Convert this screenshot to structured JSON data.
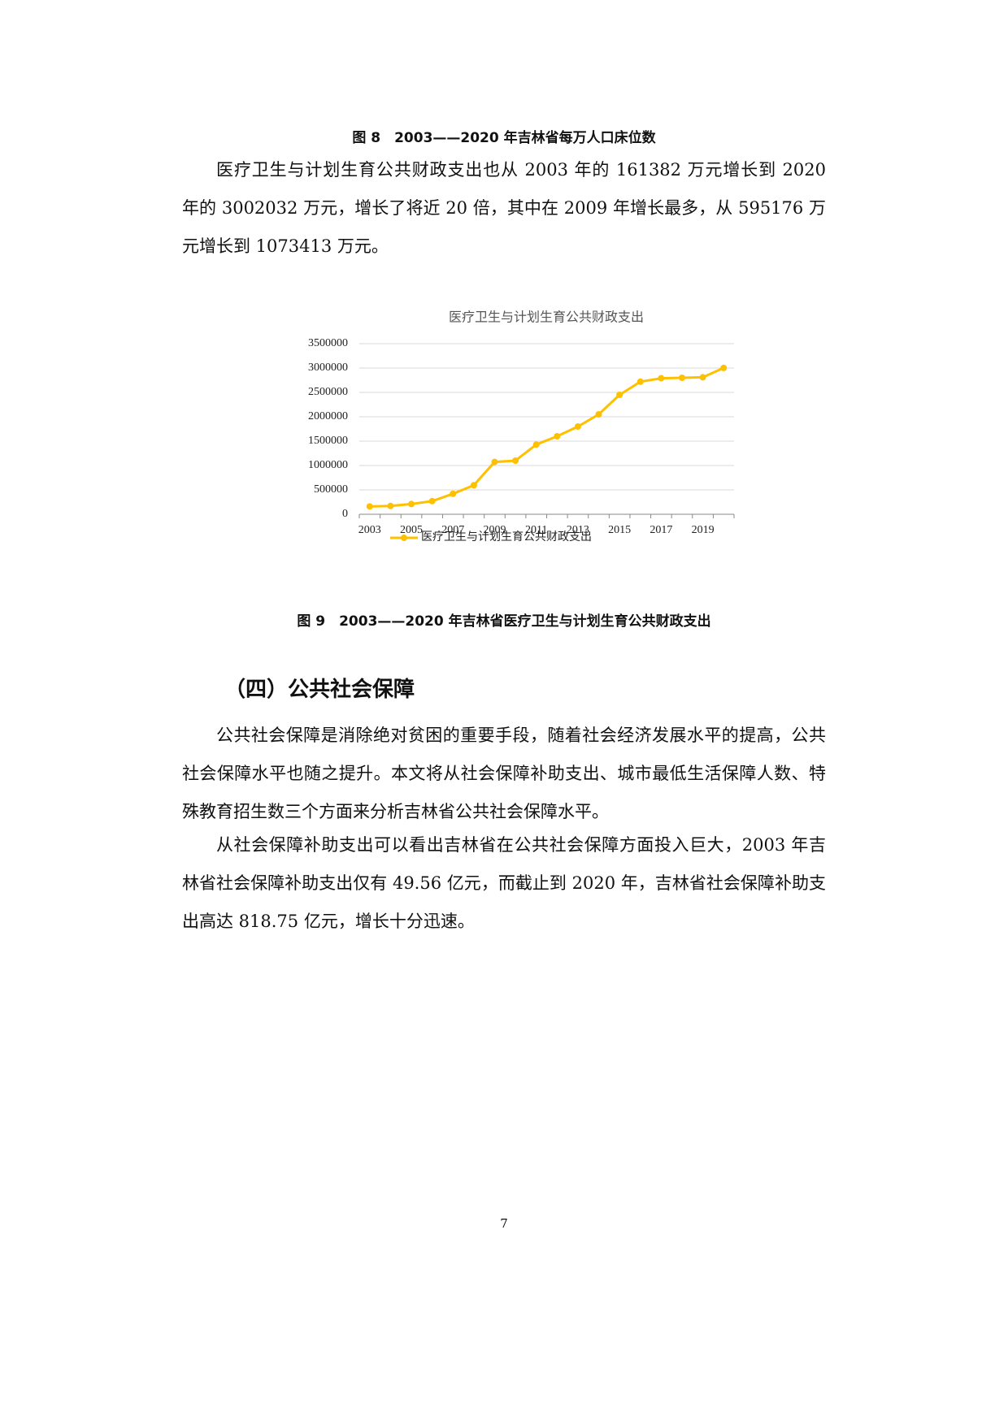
{
  "figure8_caption": "图 8　2003——2020 年吉林省每万人口床位数",
  "paragraph1": "医疗卫生与计划生育公共财政支出也从 2003 年的 161382 万元增长到 2020 年的 3002032 万元，增长了将近 20 倍，其中在 2009 年增长最多，从 595176 万元增长到 1073413 万元。",
  "chart_data": {
    "type": "line",
    "title": "医疗卫生与计划生育公共财政支出",
    "categories": [
      "2003",
      null,
      "2005",
      null,
      "2007",
      null,
      "2009",
      null,
      "2011",
      null,
      "2013",
      null,
      "2015",
      null,
      "2017",
      null,
      "2019",
      null
    ],
    "series": [
      {
        "name": "医疗卫生与计划生育公共财政支出",
        "color": "#ffc000",
        "values": [
          161382,
          170000,
          210000,
          270000,
          420000,
          595176,
          1073413,
          1100000,
          1430000,
          1600000,
          1800000,
          2050000,
          2450000,
          2720000,
          2790000,
          2800000,
          2810000,
          3002032
        ]
      }
    ],
    "ylim": [
      0,
      3500000
    ],
    "yticks": [
      0,
      500000,
      1000000,
      1500000,
      2000000,
      2500000,
      3000000,
      3500000
    ],
    "grid": true,
    "legend": "bottom"
  },
  "figure9_caption": "图 9　2003——2020 年吉林省医疗卫生与计划生育公共财政支出",
  "section_heading": "（四）公共社会保障",
  "paragraph2": "公共社会保障是消除绝对贫困的重要手段，随着社会经济发展水平的提高，公共社会保障水平也随之提升。本文将从社会保障补助支出、城市最低生活保障人数、特殊教育招生数三个方面来分析吉林省公共社会保障水平。",
  "paragraph3": "从社会保障补助支出可以看出吉林省在公共社会保障方面投入巨大，2003 年吉林省社会保障补助支出仅有 49.56 亿元，而截止到 2020 年，吉林省社会保障补助支出高达 818.75 亿元，增长十分迅速。",
  "page_number": "7"
}
